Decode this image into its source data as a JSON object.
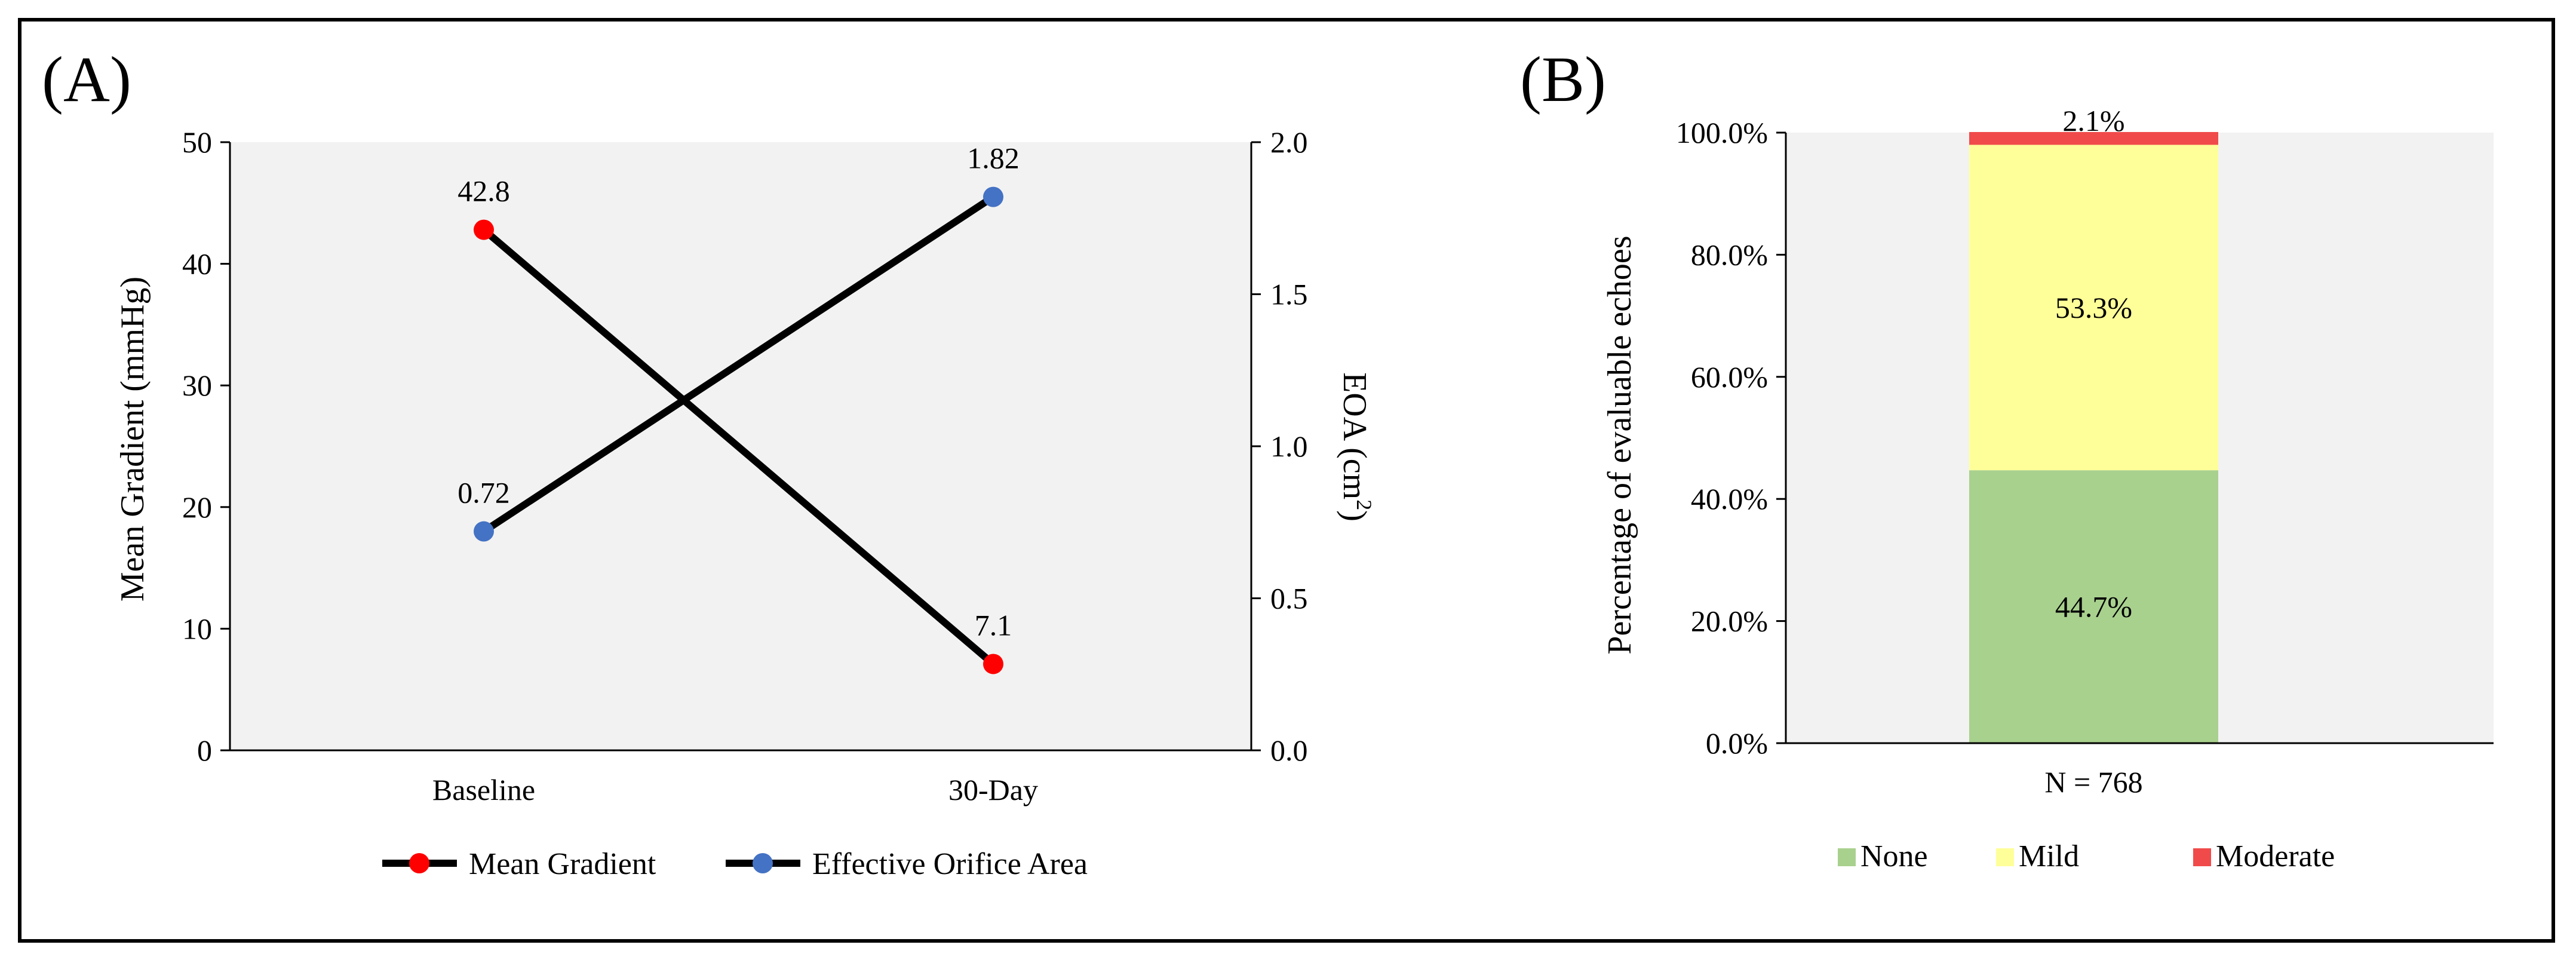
{
  "panels": {
    "a_label": "(A)",
    "b_label": "(B)"
  },
  "chart_data": [
    {
      "type": "line",
      "categories": [
        "Baseline",
        "30-Day"
      ],
      "ylabel": "Mean Gradient (mmHg)",
      "y2label_prefix": "EOA (cm",
      "y2label_sup": "2",
      "y2label_suffix": ")",
      "ylim": [
        0,
        50
      ],
      "y2lim": [
        0,
        2.0
      ],
      "yticks": [
        "0",
        "10",
        "20",
        "30",
        "40",
        "50"
      ],
      "y2ticks": [
        "0.0",
        "0.5",
        "1.0",
        "1.5",
        "2.0"
      ],
      "series": [
        {
          "name": "Mean Gradient",
          "axis": "left",
          "values": [
            42.8,
            7.1
          ],
          "labels": [
            "42.8",
            "7.1"
          ],
          "color": "#ff0000"
        },
        {
          "name": "Effective Orifice Area",
          "axis": "right",
          "values": [
            0.72,
            1.82
          ],
          "labels": [
            "0.72",
            "1.82"
          ],
          "color": "#4472c4"
        }
      ],
      "line_color": "#000000",
      "plot_background": "#f2f2f2",
      "legend_position": "bottom",
      "grid": false
    },
    {
      "type": "bar",
      "stacked": true,
      "categories": [
        "N = 768"
      ],
      "ylabel": "Percentage of evaluable echoes",
      "ylim": [
        0,
        100
      ],
      "yticks": [
        "0.0%",
        "20.0%",
        "40.0%",
        "60.0%",
        "80.0%",
        "100.0%"
      ],
      "series": [
        {
          "name": "None",
          "values": [
            44.7
          ],
          "label": "44.7%",
          "color": "#a9d18e"
        },
        {
          "name": "Mild",
          "values": [
            53.3
          ],
          "label": "53.3%",
          "color": "#ffff99"
        },
        {
          "name": "Moderate",
          "values": [
            2.1
          ],
          "label": "2.1%",
          "color": "#f14a4a"
        }
      ],
      "plot_background": "#f2f2f2",
      "legend_position": "bottom",
      "grid": false
    }
  ]
}
